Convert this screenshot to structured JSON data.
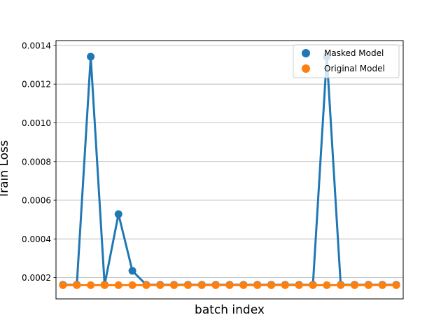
{
  "chart_data": {
    "type": "line",
    "title": "",
    "xlabel": "batch index",
    "ylabel": "Train Loss",
    "ylim": [
      9e-05,
      0.001425
    ],
    "xlim": [
      -0.5,
      24.5
    ],
    "grid": "y",
    "legend_position": "top-right",
    "x": [
      0,
      1,
      2,
      3,
      4,
      5,
      6,
      7,
      8,
      9,
      10,
      11,
      12,
      13,
      14,
      15,
      16,
      17,
      18,
      19,
      20,
      21,
      22,
      23,
      24
    ],
    "yticks": [
      0.0002,
      0.0004,
      0.0006,
      0.0008,
      0.001,
      0.0012,
      0.0014
    ],
    "ytick_labels": [
      "0.0002",
      "0.0004",
      "0.0006",
      "0.0008",
      "0.0010",
      "0.0012",
      "0.0014"
    ],
    "series": [
      {
        "name": "Masked Model",
        "color": "#1f77b4",
        "values": [
          0.000163,
          0.000163,
          0.001342,
          0.000163,
          0.000528,
          0.000235,
          0.000163,
          0.000163,
          0.000163,
          0.000163,
          0.000163,
          0.000163,
          0.000163,
          0.000163,
          0.000163,
          0.000163,
          0.000163,
          0.000163,
          0.000163,
          0.001342,
          0.000163,
          0.000163,
          0.000163,
          0.000163,
          0.000163
        ]
      },
      {
        "name": "Original Model",
        "color": "#ff7f0e",
        "values": [
          0.000161,
          0.000161,
          0.000161,
          0.000161,
          0.000161,
          0.000161,
          0.000161,
          0.000161,
          0.000161,
          0.000161,
          0.000161,
          0.000161,
          0.000161,
          0.000161,
          0.000161,
          0.000161,
          0.000161,
          0.000161,
          0.000161,
          0.000161,
          0.000161,
          0.000161,
          0.000161,
          0.000161,
          0.000161
        ]
      }
    ]
  }
}
